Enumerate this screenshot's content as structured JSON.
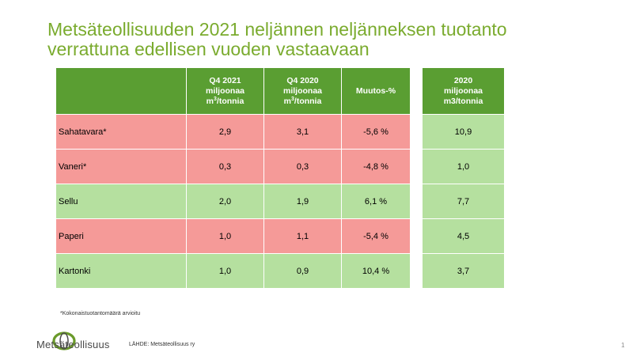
{
  "title_line1": "Metsäteollisuuden 2021 neljännen neljänneksen tuotanto",
  "title_line2": "verrattuna edellisen vuoden vastaavaan",
  "main_headers": [
    {
      "line1": "Q4 2021",
      "line2": "miljoonaa",
      "line3_unit": "m",
      "line3_sup": "3",
      "line3_rest": "/tonnia"
    },
    {
      "line1": "Q4 2020",
      "line2": "miljoonaa",
      "line3_unit": "m",
      "line3_sup": "3",
      "line3_rest": "/tonnia"
    },
    {
      "label": "Muutos-%"
    }
  ],
  "side_header": {
    "line1": "2020",
    "line2": "miljoonaa",
    "line3": "m3/tonnia"
  },
  "rows": [
    {
      "label": "Sahatavara*",
      "q4_2021": "2,9",
      "q4_2020": "3,1",
      "change": "-5,6 %",
      "year_2020": "10,9",
      "status": "negative"
    },
    {
      "label": "Vaneri*",
      "q4_2021": "0,3",
      "q4_2020": "0,3",
      "change": "-4,8 %",
      "year_2020": "1,0",
      "status": "negative"
    },
    {
      "label": "Sellu",
      "q4_2021": "2,0",
      "q4_2020": "1,9",
      "change": "6,1 %",
      "year_2020": "7,7",
      "status": "positive"
    },
    {
      "label": "Paperi",
      "q4_2021": "1,0",
      "q4_2020": "1,1",
      "change": "-5,4 %",
      "year_2020": "4,5",
      "status": "negative"
    },
    {
      "label": "Kartonki",
      "q4_2021": "1,0",
      "q4_2020": "0,9",
      "change": "10,4 %",
      "year_2020": "3,7",
      "status": "positive"
    }
  ],
  "footnote": "*Kokonaistuotantomäärä arvioitu",
  "logo_text": "Metsäteollisuus",
  "source": "LÄHDE: Metsäteollisuus ry",
  "page_number": "1",
  "colors": {
    "title": "#7aab2e",
    "header_green": "#5a9e32",
    "negative_row": "#f59a98",
    "positive_row": "#b5e09f"
  }
}
